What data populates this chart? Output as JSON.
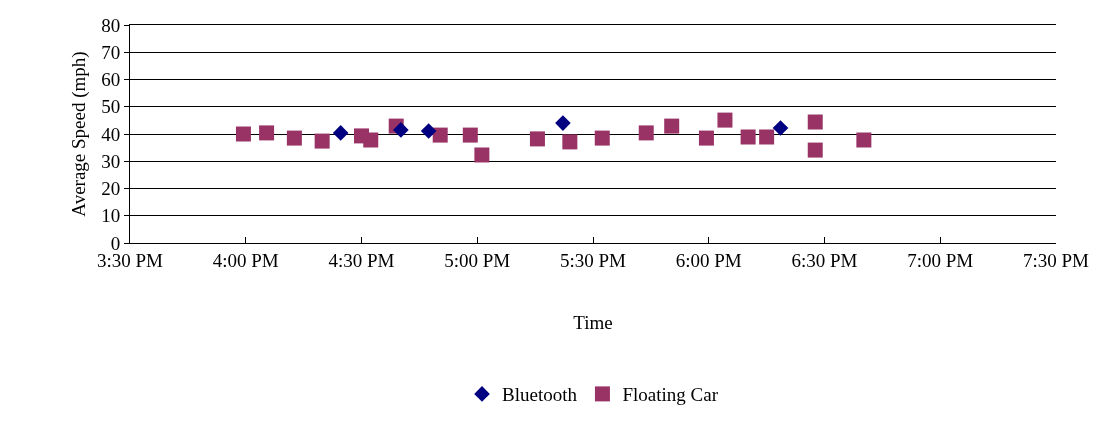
{
  "chart_data": {
    "type": "scatter",
    "xlabel": "Time",
    "ylabel": "Average Speed (mph)",
    "xlim": [
      15.5,
      19.5
    ],
    "xticks": [
      {
        "value": 15.5,
        "label": "3:30 PM"
      },
      {
        "value": 16,
        "label": "4:00 PM"
      },
      {
        "value": 16.5,
        "label": "4:30 PM"
      },
      {
        "value": 17,
        "label": "5:00 PM"
      },
      {
        "value": 17.5,
        "label": "5:30 PM"
      },
      {
        "value": 18,
        "label": "6:00 PM"
      },
      {
        "value": 18.5,
        "label": "6:30 PM"
      },
      {
        "value": 19,
        "label": "7:00 PM"
      },
      {
        "value": 19.5,
        "label": "7:30 PM"
      }
    ],
    "ylim": [
      0,
      80
    ],
    "yticks": [
      0,
      10,
      20,
      30,
      40,
      50,
      60,
      70,
      80
    ],
    "grid": "y",
    "legend": "bottom",
    "series": [
      {
        "name": "Bluetooth",
        "color": "#000080",
        "marker": "diamond",
        "x": [
          16.41,
          16.67,
          16.79,
          17.37,
          18.31
        ],
        "values": [
          40.4,
          41.5,
          41.1,
          44.0,
          42.2
        ]
      },
      {
        "name": "Floating Car",
        "color": "#993366",
        "marker": "square",
        "x": [
          15.99,
          16.09,
          16.21,
          16.33,
          16.5,
          16.54,
          16.65,
          16.84,
          16.97,
          17.02,
          17.26,
          17.4,
          17.54,
          17.73,
          17.84,
          17.99,
          18.07,
          18.17,
          18.25,
          18.46,
          18.46,
          18.67
        ],
        "values": [
          40.0,
          40.4,
          38.5,
          37.4,
          39.3,
          37.8,
          42.9,
          39.6,
          39.6,
          32.3,
          38.2,
          37.1,
          38.5,
          40.4,
          42.9,
          38.5,
          45.1,
          38.9,
          38.9,
          44.4,
          34.1,
          37.8
        ]
      }
    ]
  }
}
